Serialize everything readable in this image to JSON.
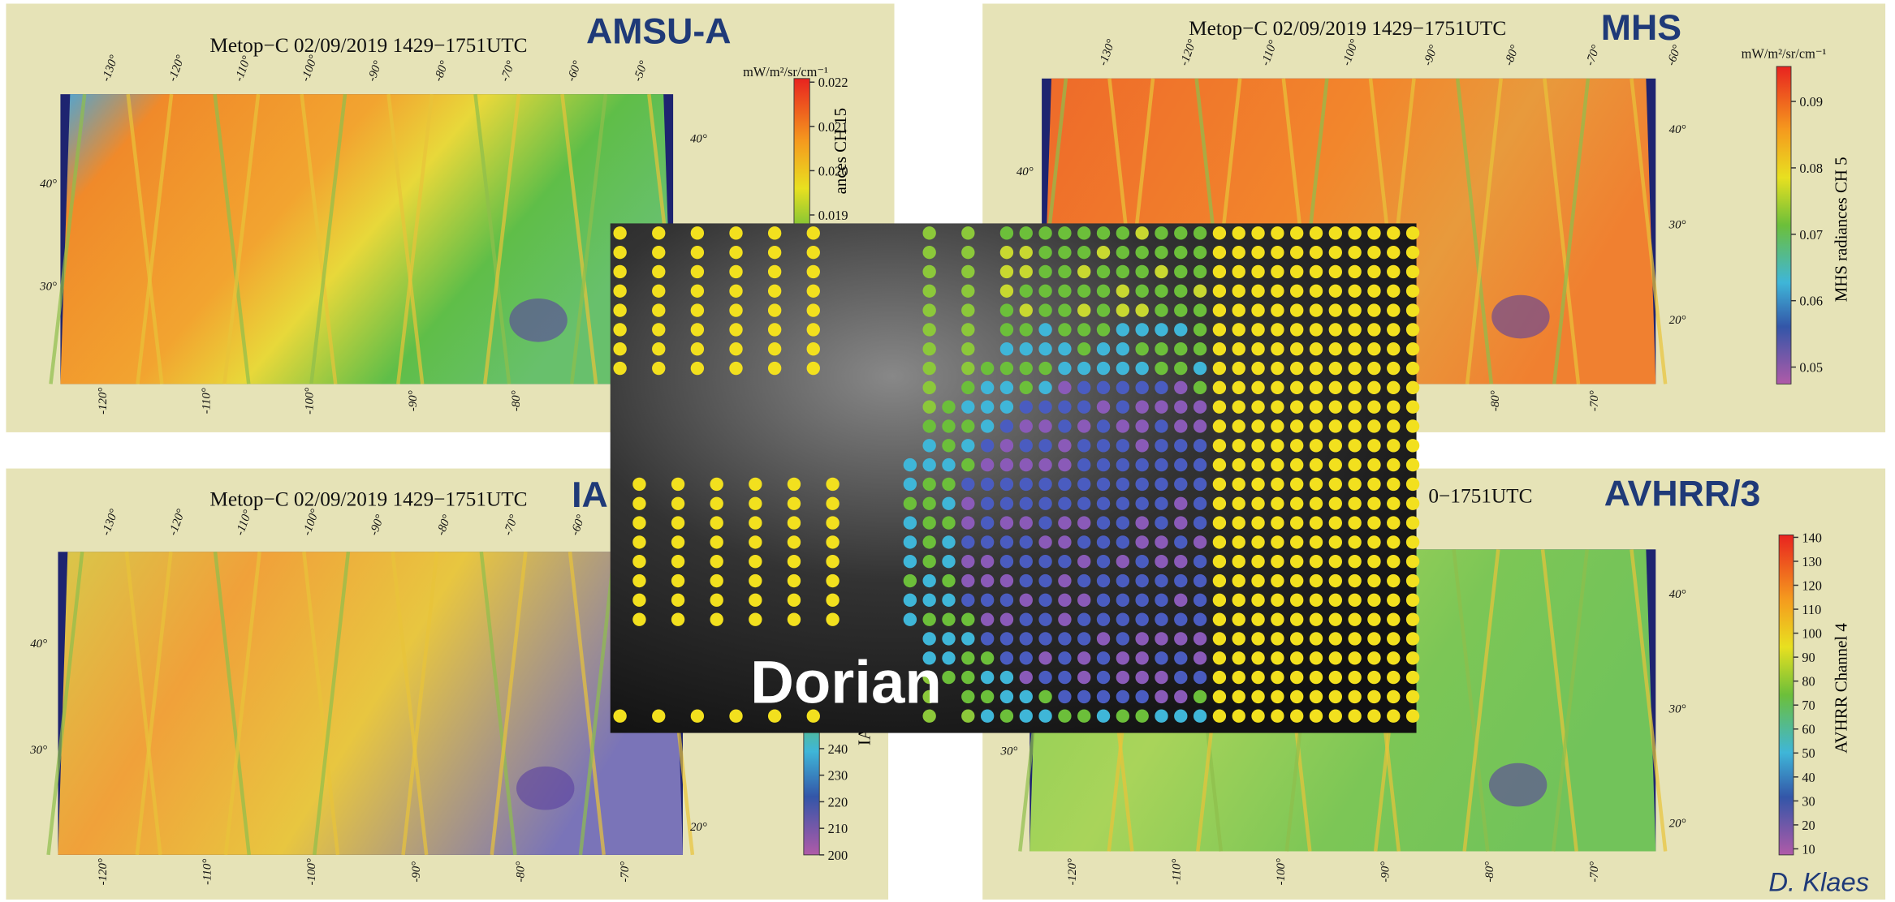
{
  "panels": [
    {
      "instrument": "AMSU-A",
      "title": "Metop−C 02/09/2019 1429−1751UTC",
      "colorbar": {
        "unit": "mW/m²/sr/cm⁻¹",
        "label": "ances CH 15",
        "ticks": [
          "0.022",
          "0.021",
          "0.020",
          "0.019"
        ]
      },
      "lon_top": [
        "-130°",
        "-120°",
        "-110°",
        "-100°",
        "-90°",
        "-80°",
        "-70°",
        "-60°",
        "-50°"
      ],
      "lon_bottom": [
        "-120°",
        "-110°",
        "-100°",
        "-90°",
        "-80°"
      ],
      "lat_left": [
        "40°",
        "30°"
      ],
      "lat_right": [
        "40°"
      ]
    },
    {
      "instrument": "MHS",
      "title": "Metop−C 02/09/2019 1429−1751UTC",
      "colorbar": {
        "unit": "mW/m²/sr/cm⁻¹",
        "label": "MHS radiances CH 5",
        "ticks": [
          "0.09",
          "0.08",
          "0.07",
          "0.06",
          "0.05"
        ]
      },
      "lon_top": [
        "-130°",
        "-120°",
        "-110°",
        "-100°",
        "-90°",
        "-80°",
        "-70°",
        "-60°"
      ],
      "lon_bottom": [
        "-80°",
        "-70°"
      ],
      "lat_left": [
        "40°"
      ],
      "lat_right": [
        "40°",
        "30°",
        "20°"
      ]
    },
    {
      "instrument": "IA",
      "title": "Metop−C 02/09/2019 1429−1751UTC",
      "colorbar": {
        "label": "IA",
        "ticks": [
          "240",
          "230",
          "220",
          "210",
          "200"
        ]
      },
      "lon_top": [
        "-130°",
        "-120°",
        "-110°",
        "-100°",
        "-90°",
        "-80°",
        "-70°",
        "-60°"
      ],
      "lon_bottom": [
        "-120°",
        "-110°",
        "-100°",
        "-90°",
        "-80°",
        "-70°"
      ],
      "lat_left": [
        "40°",
        "30°"
      ],
      "lat_right": [
        "20°"
      ]
    },
    {
      "instrument": "AVHRR/3",
      "title": "0−1751UTC",
      "colorbar": {
        "label": "AVHRR Channel 4",
        "ticks": [
          "140",
          "130",
          "120",
          "110",
          "100",
          "90",
          "80",
          "70",
          "60",
          "50",
          "40",
          "30",
          "20",
          "10"
        ]
      },
      "lon_top": [],
      "lon_bottom": [
        "-120°",
        "-110°",
        "-100°",
        "-90°",
        "-80°",
        "-70°"
      ],
      "lat_left": [
        "30°"
      ],
      "lat_right": [
        "40°",
        "30°",
        "20°"
      ]
    }
  ],
  "overlay": {
    "label": "Dorian"
  },
  "author": "D. Klaes"
}
